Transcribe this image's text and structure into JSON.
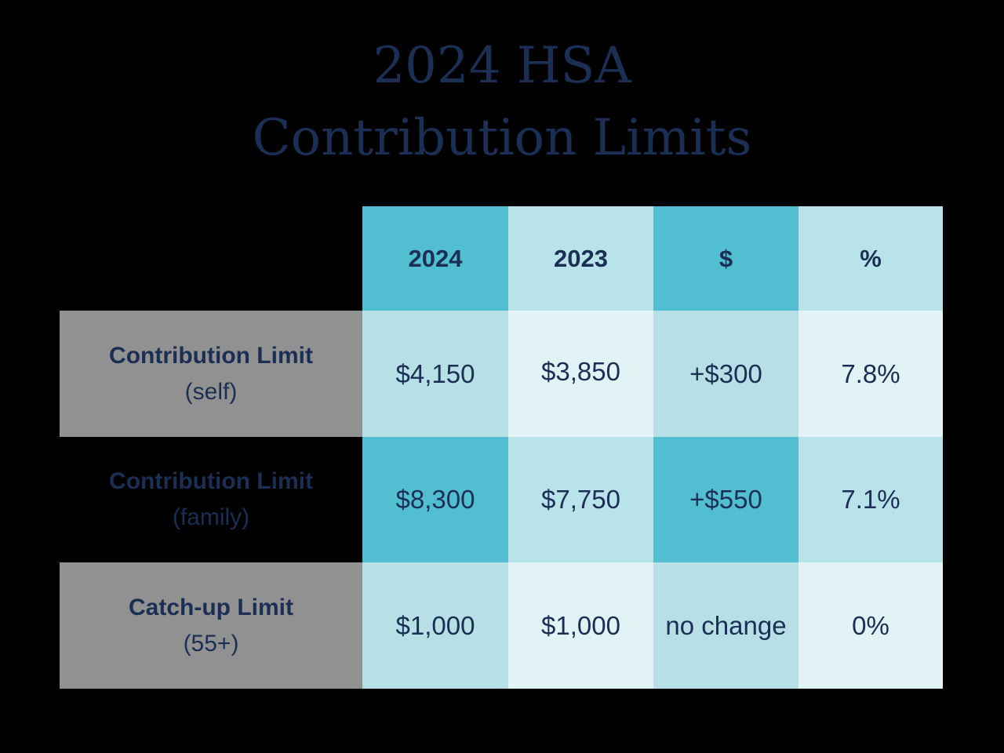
{
  "title": {
    "line1": "2024 HSA",
    "line2": "Contribution Limits"
  },
  "table": {
    "headers": [
      "2024",
      "2023",
      "$",
      "%"
    ],
    "rows": [
      {
        "label": "Contribution Limit",
        "sub": "(self)",
        "cells": [
          "$4,150",
          "$3,850",
          "+$300",
          "7.8%"
        ]
      },
      {
        "label": "Contribution Limit",
        "sub": "(family)",
        "cells": [
          "$8,300",
          "$7,750",
          "+$550",
          "7.1%"
        ]
      },
      {
        "label": "Catch-up Limit",
        "sub": "(55+)",
        "cells": [
          "$1,000",
          "$1,000",
          "no change",
          "0%"
        ]
      }
    ]
  },
  "colors": {
    "title": "#1b2f55",
    "teal": "#52bed2",
    "light_teal": "#b9e3ea",
    "pale_teal": "#e2f3f6",
    "row_label_grey": "#919191"
  }
}
